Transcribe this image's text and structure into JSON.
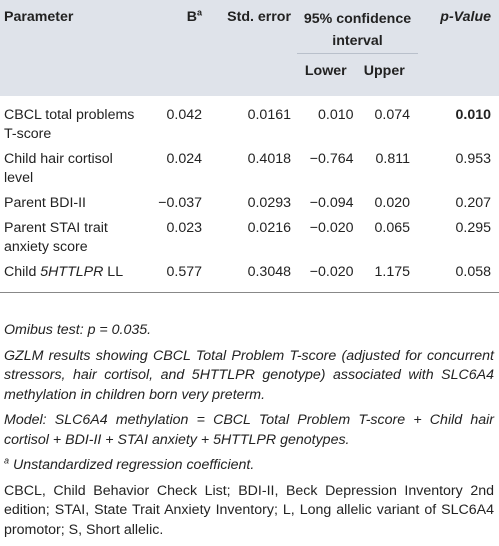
{
  "table": {
    "headers": {
      "parameter": "Parameter",
      "b": "B",
      "b_sup": "a",
      "std_error": "Std. error",
      "ci_line1": "95% confidence",
      "ci_line2": "interval",
      "lower": "Lower",
      "upper": "Upper",
      "p_value": "p-Value"
    },
    "rows": [
      {
        "param_line1": "CBCL total problems",
        "param_line2": "T-score",
        "b": "0.042",
        "se": "0.0161",
        "lower": "0.010",
        "upper": "0.074",
        "p": "0.010"
      },
      {
        "param_line1": "Child hair cortisol",
        "param_line2": "level",
        "b": "0.024",
        "se": "0.4018",
        "lower": "−0.764",
        "upper": "0.811",
        "p": "0.953"
      },
      {
        "param_line1": "Parent BDI-II",
        "param_line2": "",
        "b": "−0.037",
        "se": "0.0293",
        "lower": "−0.094",
        "upper": "0.020",
        "p": "0.207"
      },
      {
        "param_line1": "Parent STAI trait",
        "param_line2": "anxiety score",
        "b": "0.023",
        "se": "0.0216",
        "lower": "−0.020",
        "upper": "0.065",
        "p": "0.295"
      },
      {
        "param_prefix": "Child ",
        "param_italic": "5HTTLPR",
        "param_suffix": " LL",
        "b": "0.577",
        "se": "0.3048",
        "lower": "−0.020",
        "upper": "1.175",
        "p": "0.058"
      }
    ]
  },
  "notes": {
    "omnibus": "Omibus test: p = 0.035.",
    "gzlm": "GZLM results showing CBCL Total Problem T-score (adjusted for concurrent stressors, hair cortisol, and 5HTTLPR genotype) associated with SLC6A4 methylation in children born very preterm.",
    "model": "Model: SLC6A4 methylation = CBCL Total Problem T-score + Child hair cortisol + BDI-II + STAI anxiety + 5HTTLPR genotypes.",
    "footnote_mark": "a",
    "footnote": " Unstandardized regression coefficient.",
    "abbreviations": "CBCL, Child Behavior Check List; BDI-II, Beck Depression Inventory 2nd edition; STAI, State Trait Anxiety Inventory; L, Long allelic variant of SLC6A4 promotor; S, Short allelic."
  },
  "colors": {
    "header_band": "#dfe3ea",
    "text": "#222222"
  }
}
